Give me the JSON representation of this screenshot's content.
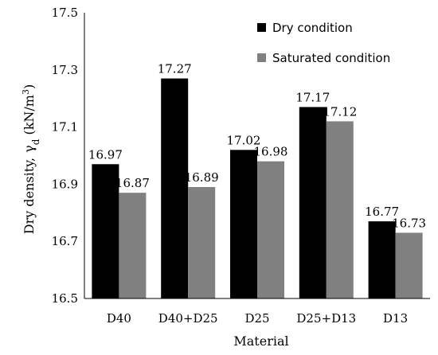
{
  "chart_data": {
    "type": "bar",
    "categories": [
      "D40",
      "D40+D25",
      "D25",
      "D25+D13",
      "D13"
    ],
    "series": [
      {
        "name": "Dry condition",
        "color": "#000000",
        "values": [
          16.97,
          17.27,
          17.02,
          17.17,
          16.77
        ]
      },
      {
        "name": "Saturated condition",
        "color": "#808080",
        "values": [
          16.87,
          16.89,
          16.98,
          17.12,
          16.73
        ]
      }
    ],
    "data_labels": [
      [
        "16.97",
        "17.27",
        "17.02",
        "17.17",
        "16.77"
      ],
      [
        "16.87",
        "16.89",
        "16.98",
        "17.12",
        "16.73"
      ]
    ],
    "yticks": [
      "16.5",
      "16.7",
      "16.9",
      "17.1",
      "17.3",
      "17.5"
    ],
    "ytick_values": [
      16.5,
      16.7,
      16.9,
      17.1,
      17.3,
      17.5
    ],
    "ylim": [
      16.5,
      17.5
    ],
    "xlabel": "Material",
    "ylabel_prefix": "Dry density,",
    "ylabel_symbol": "γ",
    "ylabel_subscript": "d",
    "ylabel_unit_open": " (kN/m",
    "ylabel_unit_exp": "3",
    "ylabel_unit_close": ")",
    "legend_position": "top-right",
    "grid": false
  }
}
